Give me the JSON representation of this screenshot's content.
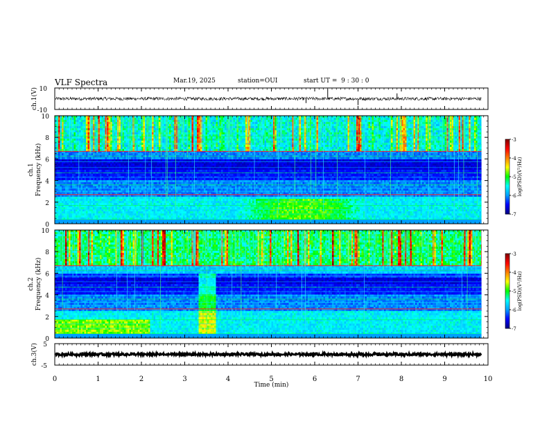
{
  "header": {
    "title": "VLF Spectra",
    "date": "Mar.19, 2025",
    "station_label": "station=",
    "station": "OUI",
    "start_label": "start  UT =",
    "start_time": "9 : 30 : 0"
  },
  "chart_data": [
    {
      "type": "line",
      "panel": "ch1-waveform",
      "ylabel": "ch.1(V)",
      "ylim": [
        -10,
        10
      ],
      "yticks": [
        "10",
        "-10"
      ],
      "baseline": 0,
      "spikes": [
        {
          "x": 6.3,
          "y": 9
        },
        {
          "x": 7.0,
          "y": -6
        },
        {
          "x": 7.9,
          "y": 5
        },
        {
          "x": 5.8,
          "y": -4
        }
      ]
    },
    {
      "type": "heatmap",
      "panel": "ch1-spectrogram",
      "ylabel": "ch.1",
      "ylabel2": "Frequency (kHz)",
      "ylim": [
        0,
        10
      ],
      "yticks": [
        "0",
        "2",
        "4",
        "6",
        "8",
        "10"
      ],
      "colorbar": {
        "label": "log(PSD)(V²/Hz)",
        "range": [
          -7,
          -3
        ],
        "ticks": [
          "-3",
          "-4",
          "-5",
          "-6",
          "-7"
        ]
      }
    },
    {
      "type": "heatmap",
      "panel": "ch2-spectrogram",
      "ylabel": "ch.2",
      "ylabel2": "Frequency (kHz)",
      "ylim": [
        0,
        10
      ],
      "yticks": [
        "0",
        "2",
        "4",
        "6",
        "8",
        "10"
      ],
      "colorbar": {
        "label": "log(PSD)(V²/Hz)",
        "range": [
          -7,
          -3
        ],
        "ticks": [
          "-3",
          "-4",
          "-5",
          "-6",
          "-7"
        ]
      }
    },
    {
      "type": "line",
      "panel": "ch3-waveform",
      "ylabel": "ch.3(V)",
      "ylim": [
        -5,
        5
      ],
      "yticks": [
        "5",
        "-5"
      ],
      "baseline": 0
    }
  ],
  "xaxis": {
    "label": "Time (min)",
    "ticks": [
      "0",
      "1",
      "2",
      "3",
      "4",
      "5",
      "6",
      "7",
      "8",
      "9",
      "10"
    ],
    "range": [
      0,
      10
    ],
    "data_end": 9.85
  },
  "colors": {
    "colormap": [
      "#000080",
      "#0000ff",
      "#00a0ff",
      "#00ffff",
      "#00ff00",
      "#ffff00",
      "#ff8000",
      "#ff0000",
      "#800000"
    ],
    "frame": "#000000"
  }
}
